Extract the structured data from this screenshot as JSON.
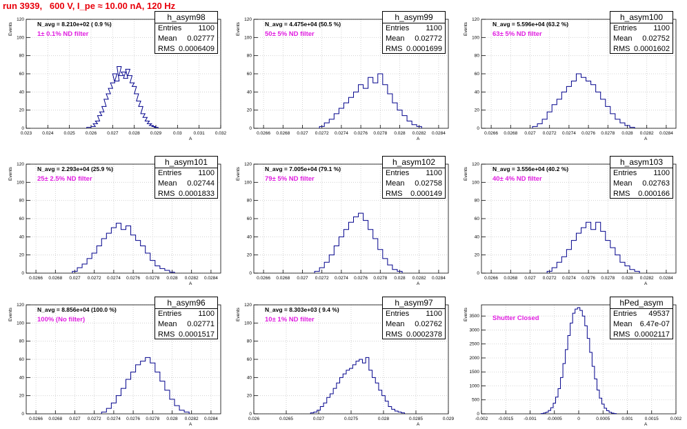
{
  "run_title": "run 3939,   600 V, I_pe ≈ 10.00 nA, 120 Hz",
  "colors": {
    "hist_line": "#00008b",
    "title_red": "#e8000b",
    "filter_magenta": "#e01ee0",
    "grid": "#c8c8c8"
  },
  "chart_data": [
    {
      "type": "bar",
      "name": "h_asym98",
      "n_avg": "N_avg = 8.210e+02 ( 0.9 %)",
      "filter": "1± 0.1% ND filter",
      "stats": {
        "entries": "1100",
        "mean": "0.02777",
        "rms": "0.0006409"
      },
      "ylabel": "Events",
      "xlabel": "A",
      "xlim": [
        0.023,
        0.032
      ],
      "ylim": [
        0,
        120
      ],
      "xticks": [
        "0.023",
        "0.024",
        "0.025",
        "0.026",
        "0.027",
        "0.028",
        "0.029",
        "0.03",
        "0.031",
        "0.032"
      ],
      "yticks": [
        "0",
        "20",
        "40",
        "60",
        "80",
        "100",
        "120"
      ],
      "x": [
        0.0259,
        0.0261,
        0.0262,
        0.0263,
        0.0264,
        0.0265,
        0.0266,
        0.0267,
        0.0268,
        0.0269,
        0.027,
        0.0271,
        0.0272,
        0.0273,
        0.0274,
        0.0275,
        0.0276,
        0.0277,
        0.0278,
        0.0279,
        0.028,
        0.0281,
        0.0282,
        0.0283,
        0.0284,
        0.0285,
        0.0286,
        0.0287,
        0.0288,
        0.0289,
        0.029
      ],
      "values": [
        1,
        2,
        5,
        8,
        14,
        18,
        24,
        32,
        38,
        44,
        50,
        60,
        52,
        68,
        58,
        62,
        55,
        65,
        58,
        50,
        46,
        38,
        30,
        24,
        16,
        12,
        8,
        5,
        3,
        2,
        1
      ]
    },
    {
      "type": "bar",
      "name": "h_asym99",
      "n_avg": "N_avg = 4.475e+04 (50.5 %)",
      "filter": "50± 5% ND filter",
      "stats": {
        "entries": "1100",
        "mean": "0.02772",
        "rms": "0.0001699"
      },
      "ylabel": "Events",
      "xlabel": "A",
      "xlim": [
        0.0265,
        0.0285
      ],
      "ylim": [
        0,
        120
      ],
      "xticks": [
        "0.0266",
        "0.0268",
        "0.027",
        "0.0272",
        "0.0274",
        "0.0276",
        "0.0278",
        "0.028",
        "0.0282",
        "0.0284"
      ],
      "yticks": [
        "0",
        "20",
        "40",
        "60",
        "80",
        "100",
        "120"
      ],
      "x": [
        0.0272,
        0.02725,
        0.0273,
        0.02735,
        0.0274,
        0.02745,
        0.0275,
        0.02755,
        0.0276,
        0.02765,
        0.0277,
        0.02775,
        0.0278,
        0.02785,
        0.0279,
        0.02795,
        0.028,
        0.02805,
        0.0281,
        0.02815,
        0.0282
      ],
      "values": [
        2,
        6,
        10,
        16,
        22,
        28,
        34,
        40,
        48,
        44,
        56,
        50,
        60,
        48,
        38,
        28,
        20,
        14,
        8,
        4,
        2
      ]
    },
    {
      "type": "bar",
      "name": "h_asym100",
      "n_avg": "N_avg = 5.596e+04 (63.2 %)",
      "filter": "63± 5% ND filter",
      "stats": {
        "entries": "1100",
        "mean": "0.02752",
        "rms": "0.0001602"
      },
      "ylabel": "Events",
      "xlabel": "A",
      "xlim": [
        0.0265,
        0.0285
      ],
      "ylim": [
        0,
        120
      ],
      "xticks": [
        "0.0266",
        "0.0268",
        "0.027",
        "0.0272",
        "0.0274",
        "0.0276",
        "0.0278",
        "0.028",
        "0.0282",
        "0.0284"
      ],
      "yticks": [
        "0",
        "20",
        "40",
        "60",
        "80",
        "100",
        "120"
      ],
      "x": [
        0.02705,
        0.0271,
        0.02715,
        0.0272,
        0.02725,
        0.0273,
        0.02735,
        0.0274,
        0.02745,
        0.0275,
        0.02755,
        0.0276,
        0.02765,
        0.0277,
        0.02775,
        0.0278,
        0.02785,
        0.0279,
        0.02795,
        0.028,
        0.02805
      ],
      "values": [
        2,
        5,
        10,
        18,
        26,
        32,
        40,
        46,
        52,
        60,
        56,
        52,
        48,
        40,
        32,
        24,
        16,
        10,
        6,
        3,
        1
      ]
    },
    {
      "type": "bar",
      "name": "h_asym101",
      "n_avg": "N_avg = 2.293e+04 (25.9 %)",
      "filter": "25± 2.5% ND filter",
      "stats": {
        "entries": "1100",
        "mean": "0.02744",
        "rms": "0.0001833"
      },
      "ylabel": "Events",
      "xlabel": "A",
      "xlim": [
        0.0265,
        0.0285
      ],
      "ylim": [
        0,
        120
      ],
      "xticks": [
        "0.0266",
        "0.0268",
        "0.027",
        "0.0272",
        "0.0274",
        "0.0276",
        "0.0278",
        "0.028",
        "0.0282",
        "0.0284"
      ],
      "yticks": [
        "0",
        "20",
        "40",
        "60",
        "80",
        "100",
        "120"
      ],
      "x": [
        0.027,
        0.02705,
        0.0271,
        0.02715,
        0.0272,
        0.02725,
        0.0273,
        0.02735,
        0.0274,
        0.02745,
        0.0275,
        0.02755,
        0.0276,
        0.02765,
        0.0277,
        0.02775,
        0.0278,
        0.02785,
        0.0279,
        0.02795,
        0.028
      ],
      "values": [
        2,
        6,
        10,
        16,
        22,
        30,
        38,
        44,
        50,
        55,
        48,
        52,
        42,
        36,
        30,
        22,
        14,
        8,
        5,
        3,
        1
      ]
    },
    {
      "type": "bar",
      "name": "h_asym102",
      "n_avg": "N_avg = 7.005e+04 (79.1 %)",
      "filter": "79± 5% ND filter",
      "stats": {
        "entries": "1100",
        "mean": "0.02758",
        "rms": "0.000149"
      },
      "ylabel": "Events",
      "xlabel": "A",
      "xlim": [
        0.0265,
        0.0285
      ],
      "ylim": [
        0,
        120
      ],
      "xticks": [
        "0.0266",
        "0.0268",
        "0.027",
        "0.0272",
        "0.0274",
        "0.0276",
        "0.0278",
        "0.028",
        "0.0282",
        "0.0284"
      ],
      "yticks": [
        "0",
        "20",
        "40",
        "60",
        "80",
        "100",
        "120"
      ],
      "x": [
        0.02715,
        0.0272,
        0.02725,
        0.0273,
        0.02735,
        0.0274,
        0.02745,
        0.0275,
        0.02755,
        0.0276,
        0.02765,
        0.0277,
        0.02775,
        0.0278,
        0.02785,
        0.0279,
        0.02795,
        0.028
      ],
      "values": [
        2,
        6,
        12,
        20,
        30,
        40,
        48,
        56,
        62,
        66,
        58,
        48,
        38,
        26,
        16,
        9,
        4,
        2
      ]
    },
    {
      "type": "bar",
      "name": "h_asym103",
      "n_avg": "N_avg = 3.556e+04 (40.2 %)",
      "filter": "40± 4% ND filter",
      "stats": {
        "entries": "1100",
        "mean": "0.02763",
        "rms": "0.000166"
      },
      "ylabel": "Events",
      "xlabel": "A",
      "xlim": [
        0.0265,
        0.0285
      ],
      "ylim": [
        0,
        120
      ],
      "xticks": [
        "0.0266",
        "0.0268",
        "0.027",
        "0.0272",
        "0.0274",
        "0.0276",
        "0.0278",
        "0.028",
        "0.0282",
        "0.0284"
      ],
      "yticks": [
        "0",
        "20",
        "40",
        "60",
        "80",
        "100",
        "120"
      ],
      "x": [
        0.0272,
        0.02725,
        0.0273,
        0.02735,
        0.0274,
        0.02745,
        0.0275,
        0.02755,
        0.0276,
        0.02765,
        0.0277,
        0.02775,
        0.0278,
        0.02785,
        0.0279,
        0.02795,
        0.028,
        0.02805,
        0.0281
      ],
      "values": [
        2,
        6,
        12,
        18,
        26,
        36,
        44,
        50,
        56,
        48,
        56,
        46,
        36,
        28,
        20,
        12,
        8,
        4,
        2
      ]
    },
    {
      "type": "bar",
      "name": "h_asym96",
      "n_avg": "N_avg = 8.856e+04 (100.0 %)",
      "filter": "100% (No filter)",
      "stats": {
        "entries": "1100",
        "mean": "0.02771",
        "rms": "0.0001517"
      },
      "ylabel": "Events",
      "xlabel": "A",
      "xlim": [
        0.0265,
        0.0285
      ],
      "ylim": [
        0,
        120
      ],
      "xticks": [
        "0.0266",
        "0.0268",
        "0.027",
        "0.0272",
        "0.0274",
        "0.0276",
        "0.0278",
        "0.028",
        "0.0282",
        "0.0284"
      ],
      "yticks": [
        "0",
        "20",
        "40",
        "60",
        "80",
        "100",
        "120"
      ],
      "x": [
        0.0273,
        0.02735,
        0.0274,
        0.02745,
        0.0275,
        0.02755,
        0.0276,
        0.02765,
        0.0277,
        0.02775,
        0.0278,
        0.02785,
        0.0279,
        0.02795,
        0.028,
        0.02805,
        0.0281,
        0.02815
      ],
      "values": [
        2,
        6,
        12,
        20,
        28,
        38,
        46,
        54,
        58,
        62,
        56,
        46,
        36,
        26,
        16,
        9,
        4,
        2
      ]
    },
    {
      "type": "bar",
      "name": "h_asym97",
      "n_avg": "N_avg = 8.303e+03 ( 9.4 %)",
      "filter": "10± 1% ND filter",
      "stats": {
        "entries": "1100",
        "mean": "0.02762",
        "rms": "0.0002378"
      },
      "ylabel": "Events",
      "xlabel": "A",
      "xlim": [
        0.026,
        0.029
      ],
      "ylim": [
        0,
        120
      ],
      "xticks": [
        "0.026",
        "0.0265",
        "0.027",
        "0.0275",
        "0.028",
        "0.0285",
        "0.029"
      ],
      "yticks": [
        "0",
        "20",
        "40",
        "60",
        "80",
        "100",
        "120"
      ],
      "x": [
        0.0269,
        0.02695,
        0.027,
        0.02705,
        0.0271,
        0.02715,
        0.0272,
        0.02725,
        0.0273,
        0.02735,
        0.0274,
        0.02745,
        0.0275,
        0.02755,
        0.0276,
        0.02765,
        0.0277,
        0.02775,
        0.0278,
        0.02785,
        0.0279,
        0.02795,
        0.028,
        0.02805,
        0.0281,
        0.02815,
        0.0282,
        0.02825,
        0.0283
      ],
      "values": [
        1,
        2,
        4,
        8,
        12,
        18,
        22,
        28,
        34,
        40,
        44,
        48,
        50,
        54,
        58,
        60,
        56,
        62,
        48,
        40,
        34,
        26,
        20,
        14,
        8,
        5,
        3,
        2,
        1
      ]
    },
    {
      "type": "bar",
      "name": "hPed_asym",
      "n_avg": "",
      "filter": "Shutter Closed",
      "stats": {
        "entries": "49537",
        "mean": "6.47e-07",
        "rms": "0.0002117"
      },
      "ylabel": "Events",
      "xlabel": "A",
      "xlim": [
        -0.002,
        0.002
      ],
      "ylim": [
        0,
        3900
      ],
      "xticks": [
        "-0.002",
        "-0.0015",
        "-0.001",
        "-0.0005",
        "0",
        "0.0005",
        "0.001",
        "0.0015",
        "0.002"
      ],
      "yticks": [
        "0",
        "500",
        "1000",
        "1500",
        "2000",
        "2500",
        "3000",
        "3500"
      ],
      "x": [
        -0.00075,
        -0.0007,
        -0.00065,
        -0.0006,
        -0.00055,
        -0.0005,
        -0.00045,
        -0.0004,
        -0.00035,
        -0.0003,
        -0.00025,
        -0.0002,
        -0.00015,
        -0.0001,
        -5e-05,
        0,
        5e-05,
        0.0001,
        0.00015,
        0.0002,
        0.00025,
        0.0003,
        0.00035,
        0.0004,
        0.00045,
        0.0005,
        0.00055,
        0.0006,
        0.00065,
        0.0007,
        0.00075
      ],
      "values": [
        10,
        30,
        60,
        120,
        220,
        380,
        600,
        900,
        1300,
        1800,
        2300,
        2800,
        3250,
        3600,
        3750,
        3800,
        3700,
        3500,
        3150,
        2700,
        2200,
        1700,
        1250,
        850,
        560,
        350,
        200,
        110,
        55,
        25,
        10
      ]
    }
  ]
}
